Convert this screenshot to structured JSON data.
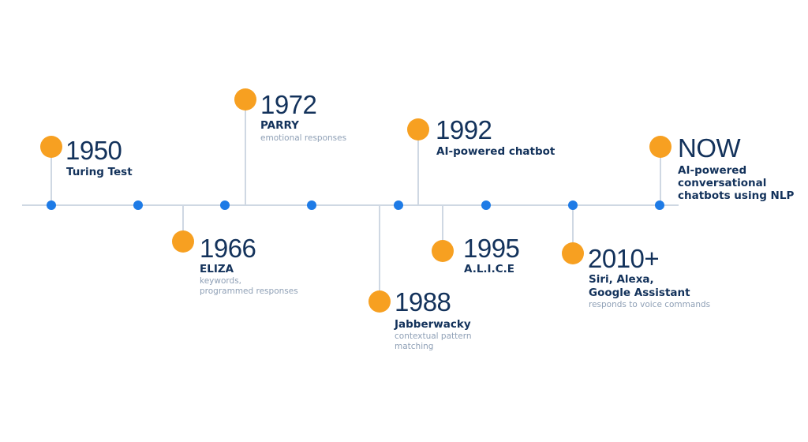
{
  "colors": {
    "accent": "#f7a021",
    "axis_dot": "#1e7be6",
    "line": "#cfd8e3",
    "text": "#13325b",
    "muted": "#8fa0b6"
  },
  "events": [
    {
      "year": "1950",
      "name": "Turing Test",
      "desc": ""
    },
    {
      "year": "1966",
      "name": "ELIZA",
      "desc": "keywords,\nprogrammed responses"
    },
    {
      "year": "1972",
      "name": "PARRY",
      "desc": "emotional responses"
    },
    {
      "year": "1988",
      "name": "Jabberwacky",
      "desc": "contextual pattern\nmatching"
    },
    {
      "year": "1992",
      "name": "AI-powered chatbot",
      "desc": ""
    },
    {
      "year": "1995",
      "name": "A.L.I.C.E",
      "desc": ""
    },
    {
      "year": "2010+",
      "name": "Siri, Alexa,\nGoogle Assistant",
      "desc": "responds to voice commands"
    },
    {
      "year": "NOW",
      "name": "AI-powered\nconversational\nchatbots using NLP",
      "desc": ""
    }
  ]
}
